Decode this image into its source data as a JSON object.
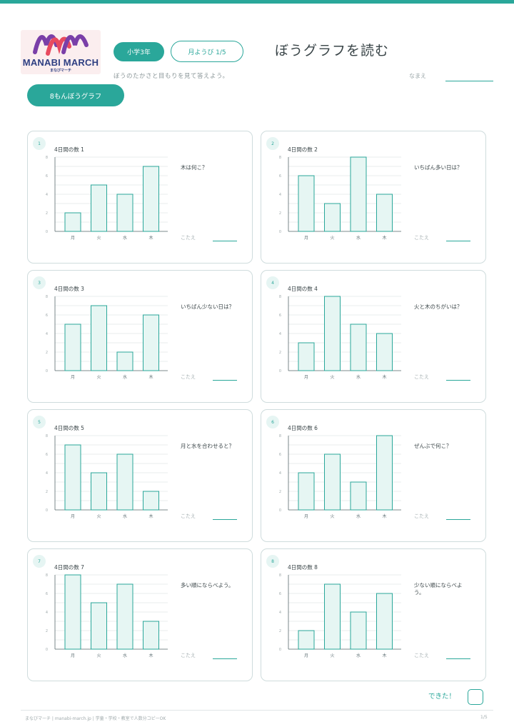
{
  "header": {
    "logo_text": "MANABI MARCH",
    "logo_sub": "まなびマーチ",
    "grade_label": "小学3年",
    "day_label": "月ようび 1/5",
    "title": "ぼうグラフを読む",
    "instruction": "ぼうのたかさと目もりを見て答えよう。",
    "name_label": "なまえ",
    "count_label": "8もんぼうグラフ"
  },
  "answer_label": "こたえ",
  "colors": {
    "accent": "#2aa79a",
    "bar_fill": "#e6f6f3",
    "logo_purple": "#7a3fa8",
    "logo_red": "#e84a5f",
    "logo_navy": "#2e3f82"
  },
  "problems": [
    {
      "number": "1",
      "title": "4日間の数 1",
      "question": "木は何こ？",
      "chart_data": {
        "type": "bar",
        "categories": [
          "月",
          "火",
          "水",
          "木"
        ],
        "values": [
          2,
          5,
          4,
          7
        ],
        "yticks": [
          "0",
          "2",
          "4",
          "6",
          "8"
        ],
        "ylim": [
          0,
          8
        ]
      }
    },
    {
      "number": "2",
      "title": "4日間の数 2",
      "question": "いちばん多い日は？",
      "chart_data": {
        "type": "bar",
        "categories": [
          "月",
          "火",
          "水",
          "木"
        ],
        "values": [
          6,
          3,
          8,
          4
        ],
        "yticks": [
          "0",
          "2",
          "4",
          "6",
          "8"
        ],
        "ylim": [
          0,
          8
        ]
      }
    },
    {
      "number": "3",
      "title": "4日間の数 3",
      "question": "いちばん少ない日は？",
      "chart_data": {
        "type": "bar",
        "categories": [
          "月",
          "火",
          "水",
          "木"
        ],
        "values": [
          5,
          7,
          2,
          6
        ],
        "yticks": [
          "0",
          "2",
          "4",
          "6",
          "8"
        ],
        "ylim": [
          0,
          8
        ]
      }
    },
    {
      "number": "4",
      "title": "4日間の数 4",
      "question": "火と木のちがいは？",
      "chart_data": {
        "type": "bar",
        "categories": [
          "月",
          "火",
          "水",
          "木"
        ],
        "values": [
          3,
          8,
          5,
          4
        ],
        "yticks": [
          "0",
          "2",
          "4",
          "6",
          "8"
        ],
        "ylim": [
          0,
          8
        ]
      }
    },
    {
      "number": "5",
      "title": "4日間の数 5",
      "question": "月と水を合わせると？",
      "chart_data": {
        "type": "bar",
        "categories": [
          "月",
          "火",
          "水",
          "木"
        ],
        "values": [
          7,
          4,
          6,
          2
        ],
        "yticks": [
          "0",
          "2",
          "4",
          "6",
          "8"
        ],
        "ylim": [
          0,
          8
        ]
      }
    },
    {
      "number": "6",
      "title": "4日間の数 6",
      "question": "ぜんぶで何こ？",
      "chart_data": {
        "type": "bar",
        "categories": [
          "月",
          "火",
          "水",
          "木"
        ],
        "values": [
          4,
          6,
          3,
          8
        ],
        "yticks": [
          "0",
          "2",
          "4",
          "6",
          "8"
        ],
        "ylim": [
          0,
          8
        ]
      }
    },
    {
      "number": "7",
      "title": "4日間の数 7",
      "question": "多い順にならべよう。",
      "chart_data": {
        "type": "bar",
        "categories": [
          "月",
          "火",
          "水",
          "木"
        ],
        "values": [
          8,
          5,
          7,
          3
        ],
        "yticks": [
          "0",
          "2",
          "4",
          "6",
          "8"
        ],
        "ylim": [
          0,
          8
        ]
      }
    },
    {
      "number": "8",
      "title": "4日間の数 8",
      "question": "少ない順にならべよう。",
      "chart_data": {
        "type": "bar",
        "categories": [
          "月",
          "火",
          "水",
          "木"
        ],
        "values": [
          2,
          7,
          4,
          6
        ],
        "yticks": [
          "0",
          "2",
          "4",
          "6",
          "8"
        ],
        "ylim": [
          0,
          8
        ]
      }
    }
  ],
  "footer": {
    "done_label": "できた！",
    "left_text": "まなびマーチ | manabi-march.jp | 学童・学校・教室で人数分コピーOK",
    "right_text": "1/5"
  }
}
